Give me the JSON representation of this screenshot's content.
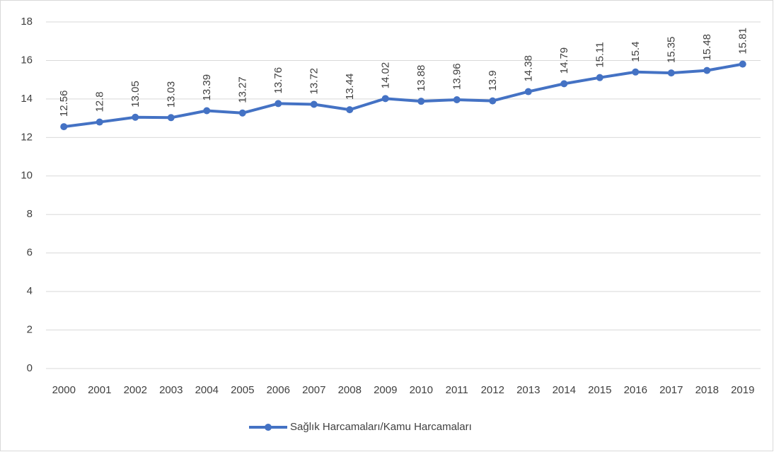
{
  "chart_data": {
    "type": "line",
    "categories": [
      "2000",
      "2001",
      "2002",
      "2003",
      "2004",
      "2005",
      "2006",
      "2007",
      "2008",
      "2009",
      "2010",
      "2011",
      "2012",
      "2013",
      "2014",
      "2015",
      "2016",
      "2017",
      "2018",
      "2019"
    ],
    "series": [
      {
        "name": "Sağlık Harcamaları/Kamu Harcamaları",
        "color": "#4472c4",
        "values": [
          12.56,
          12.8,
          13.05,
          13.03,
          13.39,
          13.27,
          13.76,
          13.72,
          13.44,
          14.02,
          13.88,
          13.96,
          13.9,
          14.38,
          14.79,
          15.11,
          15.4,
          15.35,
          15.48,
          15.81
        ]
      }
    ],
    "ylim": [
      0,
      18
    ],
    "yticks": [
      0,
      2,
      4,
      6,
      8,
      10,
      12,
      14,
      16,
      18
    ],
    "grid": true,
    "legend": "bottom"
  }
}
